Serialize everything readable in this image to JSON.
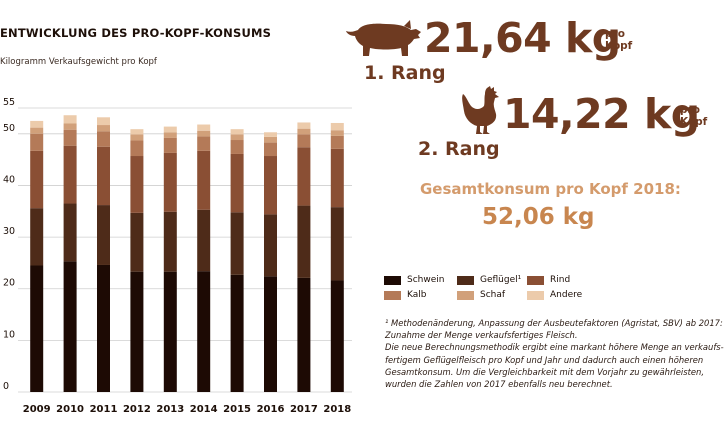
{
  "chart_data": {
    "type": "bar",
    "stacked": true,
    "title": "ENTWICKLUNG DES PRO-KOPF-KONSUMS",
    "subtitle": "Kilogramm Verkaufsgewicht pro Kopf",
    "categories": [
      "2009",
      "2010",
      "2011",
      "2012",
      "2013",
      "2014",
      "2015",
      "2016",
      "2017",
      "2018"
    ],
    "y_ticks": [
      0,
      10,
      20,
      30,
      40,
      50,
      55
    ],
    "ylim": [
      0,
      55
    ],
    "grid": true,
    "legend_position": "right",
    "series": [
      {
        "name": "Schwein",
        "color": "#1d0a04",
        "values": [
          24.5,
          25.3,
          24.6,
          23.3,
          23.3,
          23.4,
          22.7,
          22.4,
          22.1,
          21.6
        ]
      },
      {
        "name": "Geflügel¹",
        "color": "#4e2b19",
        "values": [
          11.1,
          11.2,
          11.6,
          11.4,
          11.6,
          11.9,
          12.1,
          12.0,
          14.0,
          14.2
        ]
      },
      {
        "name": "Rind",
        "color": "#8a4f34",
        "values": [
          11.1,
          11.2,
          11.3,
          11.0,
          11.4,
          11.4,
          11.3,
          11.3,
          11.3,
          11.3
        ]
      },
      {
        "name": "Kalb",
        "color": "#b47a58",
        "values": [
          3.3,
          3.1,
          3.0,
          3.0,
          2.9,
          2.8,
          2.7,
          2.6,
          2.5,
          2.5
        ]
      },
      {
        "name": "Schaf",
        "color": "#d1a07a",
        "values": [
          1.2,
          1.2,
          1.2,
          1.2,
          1.1,
          1.1,
          1.1,
          1.1,
          1.1,
          1.1
        ]
      },
      {
        "name": "Andere",
        "color": "#eccbab",
        "values": [
          1.3,
          1.6,
          1.5,
          1.0,
          1.1,
          1.2,
          1.0,
          0.9,
          1.2,
          1.4
        ]
      }
    ]
  },
  "highlights": {
    "first": {
      "value": "21,64 kg",
      "per": "pro Kopf",
      "rank": "1. Rang",
      "icon": "pig-icon"
    },
    "second": {
      "value": "14,22 kg",
      "per": "pro Kopf",
      "rank": "2. Rang",
      "icon": "chicken-icon"
    },
    "total_label": "Gesamtkonsum pro Kopf 2018:",
    "total_value": "52,06 kg"
  },
  "colors": {
    "accent_dark": "#6e3a21",
    "accent_light": "#d49b6c"
  },
  "footnote": {
    "lines": [
      "¹ Methodenänderung, Anpassung der Ausbeutefaktoren (Agristat, SBV) ab 2017:",
      "Zunahme der Menge verkaufsfertiges Fleisch.",
      "Die neue Berechnungsmethodik ergibt eine markant höhere Menge an verkaufs-",
      "fertigem Geflügelfleisch pro Kopf und Jahr und dadurch auch einen höheren",
      "Gesamtkonsum. Um die Vergleichbarkeit mit dem Vorjahr zu gewährleisten,",
      "wurden die Zahlen von 2017 ebenfalls neu berechnet."
    ]
  }
}
